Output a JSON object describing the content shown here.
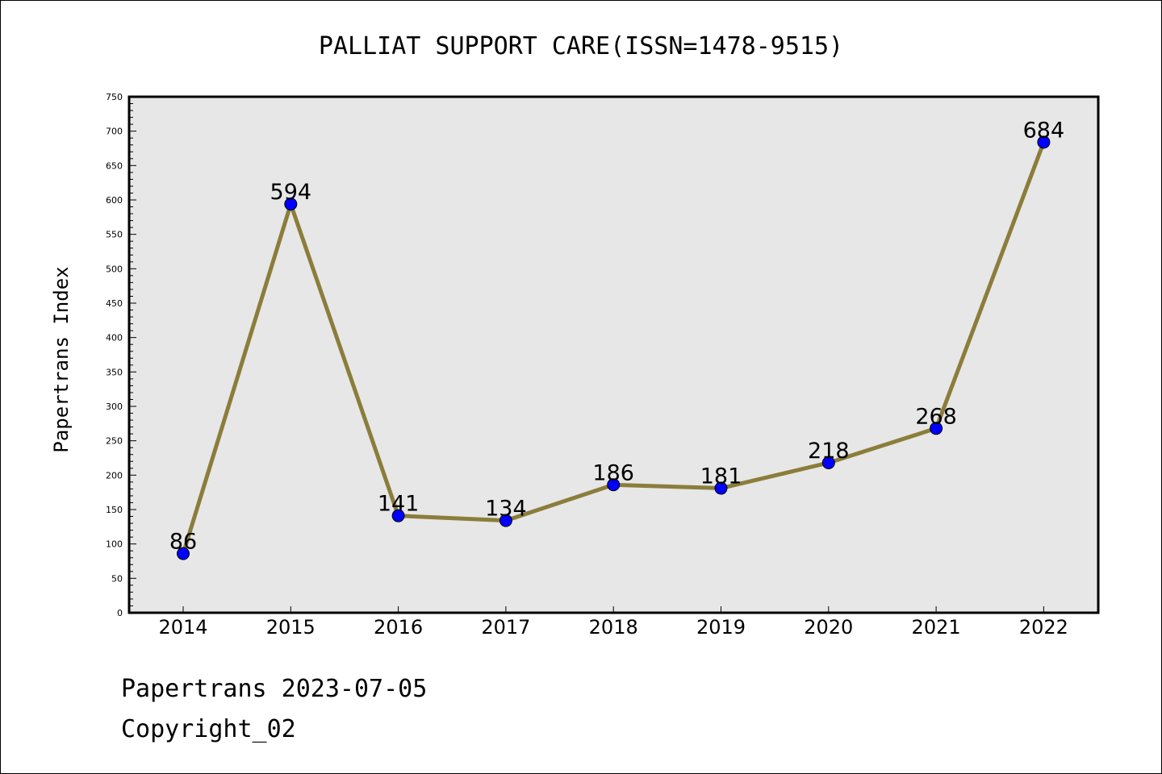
{
  "chart_data": {
    "type": "line",
    "title": "PALLIAT SUPPORT CARE(ISSN=1478-9515)",
    "xlabel": "",
    "ylabel": "Papertrans Index",
    "categories": [
      "2014",
      "2015",
      "2016",
      "2017",
      "2018",
      "2019",
      "2020",
      "2021",
      "2022"
    ],
    "series": [
      {
        "values": [
          86,
          594,
          141,
          134,
          186,
          181,
          218,
          268,
          684
        ]
      }
    ],
    "ylim": [
      0,
      750
    ],
    "yticks": [
      0,
      50,
      100,
      150,
      200,
      250,
      300,
      350,
      400,
      450,
      500,
      550,
      600,
      650,
      700,
      750
    ],
    "grid": false,
    "colors": {
      "line": "#8B7D3A",
      "marker": "#0000FF",
      "plot_background": "#E7E7E7"
    }
  },
  "footer": {
    "line1": "Papertrans 2023-07-05",
    "line2": "Copyright_02"
  }
}
